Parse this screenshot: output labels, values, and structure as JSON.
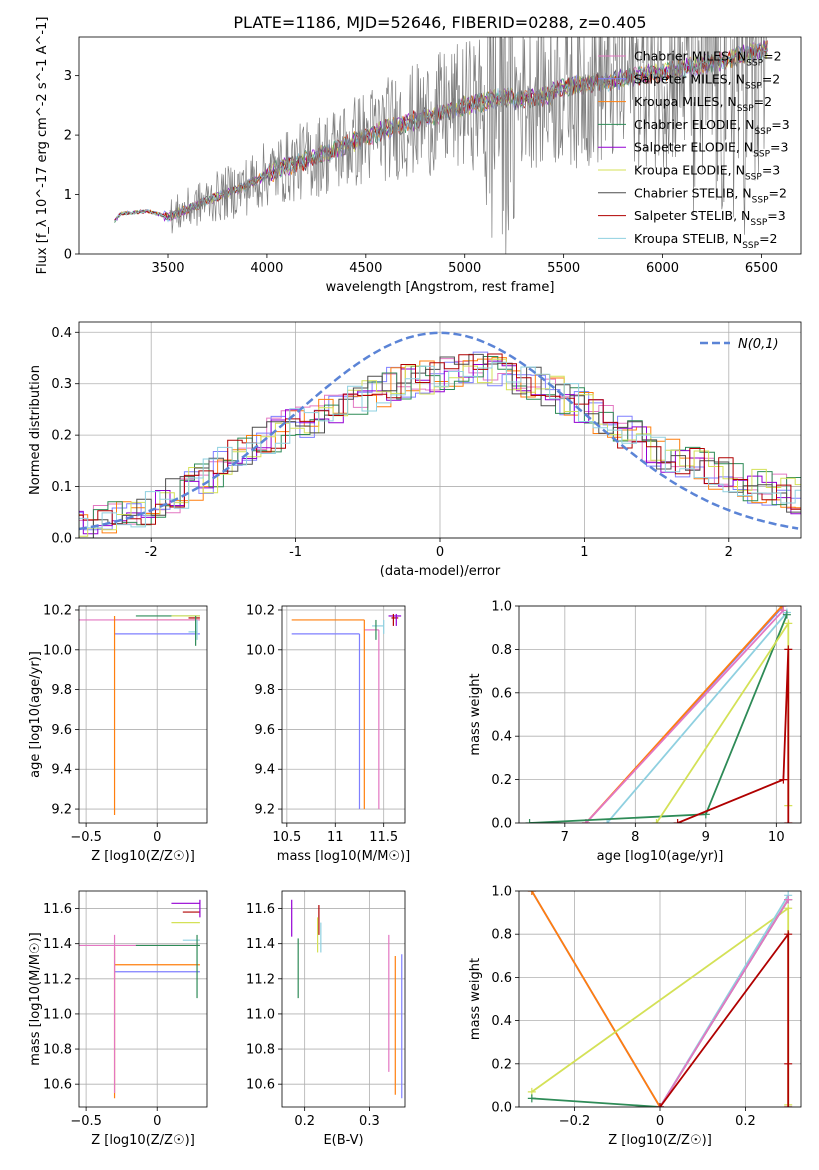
{
  "figure_title": "PLATE=1186, MJD=52646, FIBERID=0288, z=0.405",
  "colors": {
    "chabrier_miles": "#e377c2",
    "salpeter_miles": "#7f7fff",
    "kroupa_miles": "#ff7f0e",
    "chabrier_elodie": "#2e8b57",
    "salpeter_elodie": "#9400d3",
    "kroupa_elodie": "#d4e157",
    "chabrier_stelib": "#4d4d4d",
    "salpeter_stelib": "#b00000",
    "kroupa_stelib": "#8fd0e0",
    "data": "#808080",
    "normal_curve": "#5b84d6"
  },
  "chart_data": [
    {
      "type": "line",
      "title": "PLATE=1186, MJD=52646, FIBERID=0288, z=0.405",
      "xlabel": "wavelength [Angstrom, rest frame]",
      "ylabel": "Flux [f_λ 10^-17 erg cm^-2 s^-1 A^-1]",
      "xlim": [
        3050,
        6700
      ],
      "ylim": [
        0,
        3.65
      ],
      "xticks": [
        3500,
        4000,
        4500,
        5000,
        5500,
        6000,
        6500
      ],
      "yticks": [
        0,
        1,
        2,
        3
      ],
      "legend_position": "top-right",
      "legend": [
        "Chabrier MILES, N_SSP=2",
        "Salpeter MILES, N_SSP=2",
        "Kroupa MILES, N_SSP=2",
        "Chabrier ELODIE, N_SSP=3",
        "Salpeter ELODIE, N_SSP=3",
        "Kroupa ELODIE, N_SSP=3",
        "Chabrier STELIB, N_SSP=2",
        "Salpeter STELIB, N_SSP=3",
        "Kroupa STELIB, N_SSP=2"
      ],
      "model_start": 3230,
      "model_end": 6530,
      "noisy_start": 3510,
      "continuum": [
        [
          3230,
          0.55
        ],
        [
          3260,
          0.68
        ],
        [
          3400,
          0.72
        ],
        [
          3500,
          0.62
        ],
        [
          3700,
          0.9
        ],
        [
          3900,
          1.15
        ],
        [
          4000,
          1.35
        ],
        [
          4300,
          1.7
        ],
        [
          4600,
          2.1
        ],
        [
          4860,
          2.35
        ],
        [
          5000,
          2.5
        ],
        [
          5300,
          2.7
        ],
        [
          5600,
          2.85
        ],
        [
          6000,
          3.05
        ],
        [
          6300,
          3.25
        ],
        [
          6530,
          3.45
        ]
      ]
    },
    {
      "type": "line",
      "xlabel": "(data-model)/error",
      "ylabel": "Normed distribution",
      "xlim": [
        -2.5,
        2.5
      ],
      "ylim": [
        0,
        0.42
      ],
      "xticks": [
        -2,
        -1,
        0,
        1,
        2
      ],
      "yticks": [
        0.0,
        0.1,
        0.2,
        0.3,
        0.4
      ],
      "legend_position": "top-right",
      "legend": [
        "N(0,1)"
      ],
      "bin_width": 0.1,
      "hist_envelope": [
        [
          -2.5,
          0.02
        ],
        [
          -2.0,
          0.06
        ],
        [
          -1.6,
          0.12
        ],
        [
          -1.3,
          0.18
        ],
        [
          -1.0,
          0.22
        ],
        [
          -0.6,
          0.26
        ],
        [
          -0.3,
          0.3
        ],
        [
          0.0,
          0.32
        ],
        [
          0.3,
          0.33
        ],
        [
          0.6,
          0.31
        ],
        [
          0.9,
          0.27
        ],
        [
          1.2,
          0.22
        ],
        [
          1.5,
          0.17
        ],
        [
          1.9,
          0.13
        ],
        [
          2.2,
          0.1
        ],
        [
          2.5,
          0.08
        ]
      ]
    },
    {
      "type": "scatter",
      "xlabel": "Z [log10(Z/Z☉)]",
      "ylabel": "age [log10(age/yr)]",
      "xlim": [
        -0.55,
        0.35
      ],
      "ylim": [
        9.13,
        10.22
      ],
      "xticks": [
        -0.5,
        0.0
      ],
      "yticks": [
        9.2,
        9.4,
        9.6,
        9.8,
        10.0,
        10.2
      ],
      "bars": [
        {
          "model": "salpeter_miles",
          "x": 0.3,
          "xerr": [
            0.0,
            0.0
          ],
          "y": 10.08,
          "yerr": [
            0.0,
            0.0
          ],
          "x0": -0.3
        },
        {
          "model": "kroupa_miles",
          "x": -0.3,
          "y": 10.15,
          "x0": 0.3
        },
        {
          "model": "chabrier_miles",
          "x": -0.55,
          "y": 10.15,
          "x0": 0.3
        },
        {
          "model": "chabrier_elodie",
          "x": 0.3,
          "y": 10.17,
          "x0": -0.15
        },
        {
          "model": "kroupa_elodie",
          "x": 0.3,
          "y": 10.17,
          "x0": 0.1
        },
        {
          "model": "kroupa_stelib",
          "x": 0.28,
          "y": 10.09,
          "x0": 0.22
        },
        {
          "model": "salpeter_stelib",
          "x": 0.3,
          "y": 10.16,
          "x0": 0.22
        },
        {
          "model": "chabrier_stelib",
          "x": 0.27,
          "y": 10.12,
          "x0": 0.27
        }
      ],
      "verticals": [
        {
          "model": "kroupa_miles",
          "x": -0.3,
          "y": [
            9.17,
            10.17
          ]
        },
        {
          "model": "chabrier_elodie",
          "x": 0.27,
          "y": [
            10.02,
            10.17
          ]
        },
        {
          "model": "kroupa_stelib",
          "x": 0.28,
          "y": [
            10.05,
            10.15
          ]
        }
      ]
    },
    {
      "type": "scatter",
      "xlabel": "mass [log10(M/M☉)]",
      "ylabel": "",
      "xlim": [
        10.45,
        11.72
      ],
      "ylim": [
        9.13,
        10.22
      ],
      "xticks": [
        10.5,
        11.0,
        11.5
      ],
      "yticks": [
        9.2,
        9.4,
        9.6,
        9.8,
        10.0,
        10.2
      ],
      "horizontals": [
        {
          "model": "salpeter_miles",
          "y": 10.08,
          "x": [
            10.55,
            11.25
          ]
        },
        {
          "model": "kroupa_miles",
          "y": 10.15,
          "x": [
            10.55,
            11.3
          ]
        },
        {
          "model": "chabrier_miles",
          "y": 10.1,
          "x": [
            11.3,
            11.45
          ]
        },
        {
          "model": "salpeter_elodie",
          "y": 10.17,
          "x": [
            11.55,
            11.68
          ]
        },
        {
          "model": "kroupa_stelib",
          "y": 10.12,
          "x": [
            11.38,
            11.5
          ]
        },
        {
          "model": "salpeter_stelib",
          "y": 10.16,
          "x": [
            11.58,
            11.65
          ]
        }
      ],
      "verticals": [
        {
          "model": "salpeter_miles",
          "x": 11.25,
          "y": [
            9.2,
            10.08
          ]
        },
        {
          "model": "kroupa_miles",
          "x": 11.3,
          "y": [
            9.2,
            10.15
          ]
        },
        {
          "model": "chabrier_miles",
          "x": 11.45,
          "y": [
            9.2,
            10.1
          ]
        },
        {
          "model": "chabrier_elodie",
          "x": 11.42,
          "y": [
            10.05,
            10.15
          ]
        },
        {
          "model": "kroupa_stelib",
          "x": 11.5,
          "y": [
            10.08,
            10.15
          ]
        },
        {
          "model": "salpeter_elodie",
          "x": 11.63,
          "y": [
            10.12,
            10.18
          ]
        },
        {
          "model": "salpeter_stelib",
          "x": 11.6,
          "y": [
            10.12,
            10.18
          ]
        }
      ]
    },
    {
      "type": "line",
      "xlabel": "age [log10(age/yr)]",
      "ylabel": "mass weight",
      "xlim": [
        6.35,
        10.35
      ],
      "ylim": [
        0,
        1.0
      ],
      "xticks": [
        7,
        8,
        9,
        10
      ],
      "yticks": [
        0.0,
        0.2,
        0.4,
        0.6,
        0.8,
        1.0
      ],
      "series": [
        {
          "model": "salpeter_miles",
          "x": [
            7.3,
            10.1
          ],
          "y": [
            0.0,
            1.0
          ]
        },
        {
          "model": "kroupa_miles",
          "x": [
            7.3,
            10.08
          ],
          "y": [
            0.0,
            1.0
          ]
        },
        {
          "model": "chabrier_miles",
          "x": [
            7.3,
            10.1
          ],
          "y": [
            0.0,
            0.98
          ]
        },
        {
          "model": "kroupa_stelib",
          "x": [
            7.6,
            10.15
          ],
          "y": [
            0.0,
            0.97
          ]
        },
        {
          "model": "chabrier_elodie",
          "x": [
            6.5,
            9.0,
            10.15
          ],
          "y": [
            0.0,
            0.04,
            0.96
          ]
        },
        {
          "model": "kroupa_elodie",
          "x": [
            8.3,
            10.17,
            10.17
          ],
          "y": [
            0.0,
            0.92,
            0.08
          ]
        },
        {
          "model": "salpeter_stelib",
          "x": [
            8.6,
            10.1,
            10.17,
            10.17
          ],
          "y": [
            0.0,
            0.2,
            0.8,
            0.0
          ]
        }
      ]
    },
    {
      "type": "scatter",
      "xlabel": "Z [log10(Z/Z☉)]",
      "ylabel": "mass [log10(M/M☉)]",
      "xlim": [
        -0.55,
        0.35
      ],
      "ylim": [
        10.47,
        11.7
      ],
      "xticks": [
        -0.5,
        0.0
      ],
      "yticks": [
        10.6,
        10.8,
        11.0,
        11.2,
        11.4,
        11.6
      ],
      "horizontals": [
        {
          "model": "salpeter_miles",
          "y": 11.24,
          "x": [
            -0.3,
            0.3
          ]
        },
        {
          "model": "kroupa_miles",
          "y": 11.28,
          "x": [
            -0.3,
            0.3
          ]
        },
        {
          "model": "chabrier_miles",
          "y": 11.39,
          "x": [
            -0.55,
            0.3
          ]
        },
        {
          "model": "chabrier_elodie",
          "y": 11.39,
          "x": [
            -0.15,
            0.3
          ]
        },
        {
          "model": "salpeter_elodie",
          "y": 11.63,
          "x": [
            0.1,
            0.3
          ]
        },
        {
          "model": "kroupa_elodie",
          "y": 11.52,
          "x": [
            0.1,
            0.3
          ]
        },
        {
          "model": "salpeter_stelib",
          "y": 11.58,
          "x": [
            0.18,
            0.3
          ]
        },
        {
          "model": "kroupa_stelib",
          "y": 11.42,
          "x": [
            0.18,
            0.3
          ]
        }
      ],
      "verticals": [
        {
          "model": "kroupa_miles",
          "x": -0.3,
          "y": [
            10.52,
            11.38
          ]
        },
        {
          "model": "chabrier_miles",
          "x": -0.3,
          "y": [
            10.55,
            11.45
          ]
        },
        {
          "model": "chabrier_elodie",
          "x": 0.28,
          "y": [
            11.09,
            11.45
          ]
        },
        {
          "model": "salpeter_elodie",
          "x": 0.3,
          "y": [
            11.55,
            11.65
          ]
        }
      ]
    },
    {
      "type": "scatter",
      "xlabel": "E(B-V)",
      "ylabel": "",
      "xlim": [
        0.165,
        0.355
      ],
      "ylim": [
        10.47,
        11.7
      ],
      "xticks": [
        0.2,
        0.3
      ],
      "yticks": [
        10.6,
        10.8,
        11.0,
        11.2,
        11.4,
        11.6
      ],
      "verticals": [
        {
          "model": "salpeter_elodie",
          "x": 0.18,
          "y": [
            11.44,
            11.65
          ]
        },
        {
          "model": "chabrier_elodie",
          "x": 0.19,
          "y": [
            11.09,
            11.43
          ]
        },
        {
          "model": "salpeter_stelib",
          "x": 0.222,
          "y": [
            11.45,
            11.62
          ]
        },
        {
          "model": "kroupa_elodie",
          "x": 0.22,
          "y": [
            11.35,
            11.55
          ]
        },
        {
          "model": "kroupa_stelib",
          "x": 0.225,
          "y": [
            11.35,
            11.52
          ]
        },
        {
          "model": "chabrier_miles",
          "x": 0.33,
          "y": [
            10.67,
            11.45
          ]
        },
        {
          "model": "kroupa_miles",
          "x": 0.34,
          "y": [
            10.54,
            11.33
          ]
        },
        {
          "model": "salpeter_miles",
          "x": 0.35,
          "y": [
            10.52,
            11.34
          ]
        }
      ]
    },
    {
      "type": "line",
      "xlabel": "Z [log10(Z/Z☉)]",
      "ylabel": "mass weight",
      "xlim": [
        -0.33,
        0.33
      ],
      "ylim": [
        0,
        1.0
      ],
      "xticks": [
        -0.2,
        0.0,
        0.2
      ],
      "yticks": [
        0.0,
        0.2,
        0.4,
        0.6,
        0.8,
        1.0
      ],
      "series": [
        {
          "model": "salpeter_miles",
          "x": [
            -0.3,
            0.0
          ],
          "y": [
            1.0,
            0.0
          ]
        },
        {
          "model": "kroupa_miles",
          "x": [
            -0.3,
            0.0
          ],
          "y": [
            1.0,
            0.0
          ]
        },
        {
          "model": "kroupa_elodie",
          "x": [
            -0.3,
            0.3,
            0.3
          ],
          "y": [
            0.07,
            0.92,
            0.01
          ]
        },
        {
          "model": "chabrier_elodie",
          "x": [
            -0.3,
            0.0,
            0.3
          ],
          "y": [
            0.04,
            0.0,
            0.96
          ]
        },
        {
          "model": "kroupa_stelib",
          "x": [
            0.0,
            0.3
          ],
          "y": [
            0.0,
            0.98
          ]
        },
        {
          "model": "chabrier_miles",
          "x": [
            0.0,
            0.3
          ],
          "y": [
            0.0,
            0.96
          ]
        },
        {
          "model": "salpeter_stelib",
          "x": [
            0.0,
            0.3,
            0.3,
            0.3
          ],
          "y": [
            0.0,
            0.8,
            0.2,
            0.0
          ]
        }
      ]
    }
  ]
}
